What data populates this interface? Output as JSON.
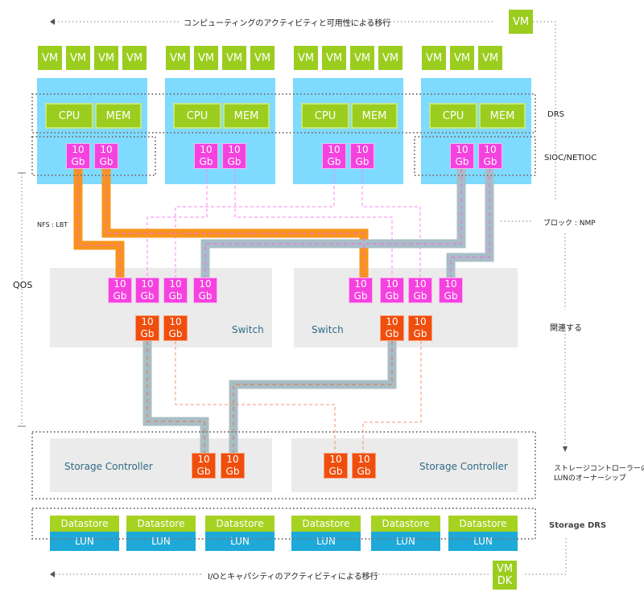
{
  "labels": {
    "top_migration": "コンピューティングのアクティビティと可用性による移行",
    "bottom_migration": "I/Oとキャパシティのアクティビティによる移行",
    "drs": "DRS",
    "sioc": "SIOC/NETIOC",
    "block_nmp": "ブロック : NMP",
    "related": "関連する",
    "lun_ownership_line1": "ストレージコントローラーの",
    "lun_ownership_line2": "LUNのオーナーシップ",
    "storage_drs": "Storage DRS",
    "qos": "QOS",
    "nfs_lbt": "NFS : LBT"
  },
  "migrating_vm": "VM",
  "vmdk": {
    "line1": "VM",
    "line2": "DK"
  },
  "hosts": [
    {
      "vms": [
        "VM",
        "VM",
        "VM",
        "VM"
      ],
      "cpu": "CPU",
      "mem": "MEM",
      "nics": [
        [
          "10",
          "Gb"
        ],
        [
          "10",
          "Gb"
        ]
      ]
    },
    {
      "vms": [
        "VM",
        "VM",
        "VM",
        "VM"
      ],
      "cpu": "CPU",
      "mem": "MEM",
      "nics": [
        [
          "10",
          "Gb"
        ],
        [
          "10",
          "Gb"
        ]
      ]
    },
    {
      "vms": [
        "VM",
        "VM",
        "VM",
        "VM"
      ],
      "cpu": "CPU",
      "mem": "MEM",
      "nics": [
        [
          "10",
          "Gb"
        ],
        [
          "10",
          "Gb"
        ]
      ]
    },
    {
      "vms": [
        "VM",
        "VM",
        "VM"
      ],
      "cpu": "CPU",
      "mem": "MEM",
      "nics": [
        [
          "10",
          "Gb"
        ],
        [
          "10",
          "Gb"
        ]
      ]
    }
  ],
  "switches": [
    {
      "label": "Switch",
      "host_ports": [
        [
          "10",
          "Gb"
        ],
        [
          "10",
          "Gb"
        ],
        [
          "10",
          "Gb"
        ],
        [
          "10",
          "Gb"
        ]
      ],
      "storage_ports": [
        [
          "10",
          "Gb"
        ],
        [
          "10",
          "Gb"
        ]
      ]
    },
    {
      "label": "Switch",
      "host_ports": [
        [
          "10",
          "Gb"
        ],
        [
          "10",
          "Gb"
        ],
        [
          "10",
          "Gb"
        ],
        [
          "10",
          "Gb"
        ]
      ],
      "storage_ports": [
        [
          "10",
          "Gb"
        ],
        [
          "10",
          "Gb"
        ]
      ]
    }
  ],
  "storage_controllers": [
    {
      "label": "Storage Controller",
      "ports": [
        [
          "10",
          "Gb"
        ],
        [
          "10",
          "Gb"
        ]
      ]
    },
    {
      "label": "Storage Controller",
      "ports": [
        [
          "10",
          "Gb"
        ],
        [
          "10",
          "Gb"
        ]
      ]
    }
  ],
  "datastores": [
    {
      "name": "Datastore",
      "lun": "LUN"
    },
    {
      "name": "Datastore",
      "lun": "LUN"
    },
    {
      "name": "Datastore",
      "lun": "LUN"
    },
    {
      "name": "Datastore",
      "lun": "LUN"
    },
    {
      "name": "Datastore",
      "lun": "LUN"
    },
    {
      "name": "Datastore",
      "lun": "LUN"
    }
  ],
  "colors": {
    "vm": "#9bcd1f",
    "host": "#7fdaff",
    "nic": "#f542df",
    "storage_port": "#f04e0d",
    "nfs_cable": "#f7941d",
    "block_cable": "#a8bec6",
    "datastore": "#a6d321",
    "lun": "#1ea9d8"
  }
}
